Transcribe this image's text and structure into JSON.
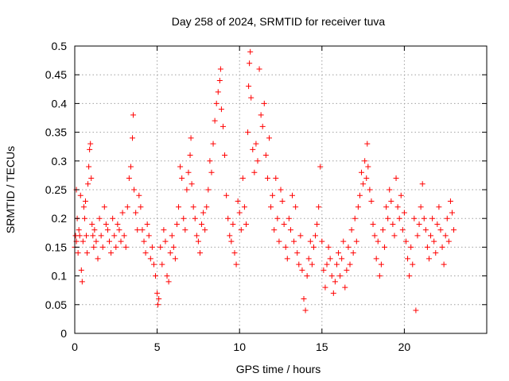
{
  "chart_data": {
    "type": "scatter",
    "title": "Day 258 of 2024, SRMTID for receiver tuva",
    "xlabel": "GPS time / hours",
    "ylabel": "SRMTID / TECUs",
    "xlim": [
      0,
      25
    ],
    "ylim": [
      0,
      0.5
    ],
    "xticks": [
      0,
      5,
      10,
      15,
      20
    ],
    "yticks": [
      0,
      0.05,
      0.1,
      0.15,
      0.2,
      0.25,
      0.3,
      0.35,
      0.4,
      0.45,
      0.5
    ],
    "xtick_labels": [
      "0",
      "5",
      "10",
      "15",
      "20"
    ],
    "ytick_labels": [
      "0",
      "0.05",
      "0.1",
      "0.15",
      "0.2",
      "0.25",
      "0.3",
      "0.35",
      "0.4",
      "0.45",
      "0.5"
    ],
    "grid": true,
    "marker": "plus",
    "color": "#ff0000",
    "series": [
      {
        "points": [
          [
            0.0,
            0.15
          ],
          [
            0.05,
            0.17
          ],
          [
            0.1,
            0.25
          ],
          [
            0.1,
            0.16
          ],
          [
            0.15,
            0.2
          ],
          [
            0.2,
            0.14
          ],
          [
            0.25,
            0.18
          ],
          [
            0.3,
            0.17
          ],
          [
            0.35,
            0.24
          ],
          [
            0.4,
            0.11
          ],
          [
            0.45,
            0.09
          ],
          [
            0.5,
            0.16
          ],
          [
            0.55,
            0.22
          ],
          [
            0.6,
            0.2
          ],
          [
            0.65,
            0.23
          ],
          [
            0.7,
            0.17
          ],
          [
            0.75,
            0.14
          ],
          [
            0.8,
            0.26
          ],
          [
            0.85,
            0.29
          ],
          [
            0.9,
            0.32
          ],
          [
            0.95,
            0.33
          ],
          [
            1.0,
            0.27
          ],
          [
            1.05,
            0.19
          ],
          [
            1.1,
            0.17
          ],
          [
            1.15,
            0.15
          ],
          [
            1.2,
            0.18
          ],
          [
            1.3,
            0.16
          ],
          [
            1.4,
            0.13
          ],
          [
            1.5,
            0.2
          ],
          [
            1.6,
            0.17
          ],
          [
            1.7,
            0.15
          ],
          [
            1.8,
            0.22
          ],
          [
            1.9,
            0.19
          ],
          [
            2.0,
            0.18
          ],
          [
            2.1,
            0.16
          ],
          [
            2.2,
            0.14
          ],
          [
            2.3,
            0.2
          ],
          [
            2.4,
            0.17
          ],
          [
            2.5,
            0.15
          ],
          [
            2.6,
            0.19
          ],
          [
            2.7,
            0.18
          ],
          [
            2.8,
            0.16
          ],
          [
            2.9,
            0.21
          ],
          [
            3.0,
            0.17
          ],
          [
            3.1,
            0.15
          ],
          [
            3.2,
            0.22
          ],
          [
            3.3,
            0.27
          ],
          [
            3.4,
            0.29
          ],
          [
            3.5,
            0.34
          ],
          [
            3.55,
            0.38
          ],
          [
            3.6,
            0.25
          ],
          [
            3.7,
            0.21
          ],
          [
            3.8,
            0.18
          ],
          [
            3.9,
            0.24
          ],
          [
            4.0,
            0.22
          ],
          [
            4.1,
            0.18
          ],
          [
            4.2,
            0.16
          ],
          [
            4.3,
            0.14
          ],
          [
            4.4,
            0.19
          ],
          [
            4.5,
            0.17
          ],
          [
            4.6,
            0.13
          ],
          [
            4.7,
            0.15
          ],
          [
            4.8,
            0.12
          ],
          [
            4.9,
            0.1
          ],
          [
            5.0,
            0.07
          ],
          [
            5.05,
            0.05
          ],
          [
            5.1,
            0.06
          ],
          [
            5.2,
            0.15
          ],
          [
            5.3,
            0.12
          ],
          [
            5.4,
            0.18
          ],
          [
            5.5,
            0.16
          ],
          [
            5.6,
            0.1
          ],
          [
            5.7,
            0.09
          ],
          [
            5.8,
            0.14
          ],
          [
            5.9,
            0.17
          ],
          [
            6.0,
            0.15
          ],
          [
            6.1,
            0.13
          ],
          [
            6.2,
            0.19
          ],
          [
            6.3,
            0.22
          ],
          [
            6.4,
            0.29
          ],
          [
            6.5,
            0.27
          ],
          [
            6.6,
            0.2
          ],
          [
            6.7,
            0.18
          ],
          [
            6.8,
            0.25
          ],
          [
            6.9,
            0.28
          ],
          [
            7.0,
            0.31
          ],
          [
            7.05,
            0.34
          ],
          [
            7.1,
            0.26
          ],
          [
            7.2,
            0.22
          ],
          [
            7.3,
            0.2
          ],
          [
            7.4,
            0.17
          ],
          [
            7.5,
            0.16
          ],
          [
            7.6,
            0.14
          ],
          [
            7.7,
            0.19
          ],
          [
            7.8,
            0.21
          ],
          [
            7.9,
            0.18
          ],
          [
            8.0,
            0.22
          ],
          [
            8.1,
            0.25
          ],
          [
            8.2,
            0.3
          ],
          [
            8.3,
            0.28
          ],
          [
            8.4,
            0.33
          ],
          [
            8.5,
            0.37
          ],
          [
            8.6,
            0.4
          ],
          [
            8.7,
            0.42
          ],
          [
            8.8,
            0.44
          ],
          [
            8.85,
            0.46
          ],
          [
            8.9,
            0.39
          ],
          [
            9.0,
            0.36
          ],
          [
            9.1,
            0.31
          ],
          [
            9.2,
            0.24
          ],
          [
            9.3,
            0.2
          ],
          [
            9.4,
            0.17
          ],
          [
            9.5,
            0.16
          ],
          [
            9.6,
            0.19
          ],
          [
            9.7,
            0.14
          ],
          [
            9.8,
            0.12
          ],
          [
            9.9,
            0.23
          ],
          [
            10.0,
            0.21
          ],
          [
            10.1,
            0.18
          ],
          [
            10.2,
            0.27
          ],
          [
            10.3,
            0.22
          ],
          [
            10.4,
            0.19
          ],
          [
            10.5,
            0.35
          ],
          [
            10.55,
            0.43
          ],
          [
            10.6,
            0.47
          ],
          [
            10.65,
            0.49
          ],
          [
            10.7,
            0.41
          ],
          [
            10.8,
            0.32
          ],
          [
            10.9,
            0.28
          ],
          [
            11.0,
            0.33
          ],
          [
            11.1,
            0.3
          ],
          [
            11.2,
            0.46
          ],
          [
            11.3,
            0.38
          ],
          [
            11.4,
            0.36
          ],
          [
            11.5,
            0.4
          ],
          [
            11.6,
            0.31
          ],
          [
            11.7,
            0.27
          ],
          [
            11.8,
            0.34
          ],
          [
            11.9,
            0.22
          ],
          [
            12.0,
            0.24
          ],
          [
            12.1,
            0.18
          ],
          [
            12.2,
            0.27
          ],
          [
            12.3,
            0.2
          ],
          [
            12.4,
            0.16
          ],
          [
            12.5,
            0.25
          ],
          [
            12.6,
            0.23
          ],
          [
            12.7,
            0.19
          ],
          [
            12.8,
            0.15
          ],
          [
            12.9,
            0.13
          ],
          [
            13.0,
            0.2
          ],
          [
            13.1,
            0.18
          ],
          [
            13.2,
            0.24
          ],
          [
            13.3,
            0.16
          ],
          [
            13.4,
            0.22
          ],
          [
            13.5,
            0.14
          ],
          [
            13.6,
            0.12
          ],
          [
            13.7,
            0.17
          ],
          [
            13.8,
            0.11
          ],
          [
            13.9,
            0.06
          ],
          [
            14.0,
            0.04
          ],
          [
            14.1,
            0.1
          ],
          [
            14.2,
            0.13
          ],
          [
            14.3,
            0.16
          ],
          [
            14.4,
            0.12
          ],
          [
            14.5,
            0.15
          ],
          [
            14.6,
            0.17
          ],
          [
            14.7,
            0.19
          ],
          [
            14.8,
            0.22
          ],
          [
            14.9,
            0.29
          ],
          [
            15.0,
            0.16
          ],
          [
            15.1,
            0.11
          ],
          [
            15.2,
            0.08
          ],
          [
            15.3,
            0.12
          ],
          [
            15.4,
            0.15
          ],
          [
            15.5,
            0.13
          ],
          [
            15.6,
            0.1
          ],
          [
            15.7,
            0.07
          ],
          [
            15.8,
            0.09
          ],
          [
            15.9,
            0.12
          ],
          [
            16.0,
            0.14
          ],
          [
            16.1,
            0.1
          ],
          [
            16.2,
            0.13
          ],
          [
            16.3,
            0.16
          ],
          [
            16.4,
            0.08
          ],
          [
            16.5,
            0.11
          ],
          [
            16.6,
            0.15
          ],
          [
            16.7,
            0.12
          ],
          [
            16.8,
            0.18
          ],
          [
            16.9,
            0.14
          ],
          [
            17.0,
            0.2
          ],
          [
            17.1,
            0.16
          ],
          [
            17.2,
            0.22
          ],
          [
            17.3,
            0.24
          ],
          [
            17.4,
            0.28
          ],
          [
            17.5,
            0.26
          ],
          [
            17.6,
            0.3
          ],
          [
            17.7,
            0.27
          ],
          [
            17.75,
            0.33
          ],
          [
            17.8,
            0.29
          ],
          [
            17.9,
            0.25
          ],
          [
            18.0,
            0.23
          ],
          [
            18.1,
            0.19
          ],
          [
            18.2,
            0.17
          ],
          [
            18.3,
            0.13
          ],
          [
            18.4,
            0.16
          ],
          [
            18.5,
            0.1
          ],
          [
            18.6,
            0.12
          ],
          [
            18.7,
            0.18
          ],
          [
            18.8,
            0.15
          ],
          [
            18.9,
            0.22
          ],
          [
            19.0,
            0.2
          ],
          [
            19.1,
            0.25
          ],
          [
            19.2,
            0.23
          ],
          [
            19.3,
            0.19
          ],
          [
            19.4,
            0.17
          ],
          [
            19.5,
            0.27
          ],
          [
            19.6,
            0.22
          ],
          [
            19.7,
            0.2
          ],
          [
            19.8,
            0.24
          ],
          [
            19.9,
            0.18
          ],
          [
            20.0,
            0.21
          ],
          [
            20.1,
            0.16
          ],
          [
            20.2,
            0.13
          ],
          [
            20.3,
            0.1
          ],
          [
            20.4,
            0.15
          ],
          [
            20.5,
            0.12
          ],
          [
            20.6,
            0.2
          ],
          [
            20.7,
            0.04
          ],
          [
            20.8,
            0.17
          ],
          [
            20.9,
            0.19
          ],
          [
            21.0,
            0.22
          ],
          [
            21.1,
            0.26
          ],
          [
            21.2,
            0.2
          ],
          [
            21.3,
            0.18
          ],
          [
            21.4,
            0.15
          ],
          [
            21.5,
            0.13
          ],
          [
            21.6,
            0.17
          ],
          [
            21.7,
            0.2
          ],
          [
            21.8,
            0.16
          ],
          [
            21.9,
            0.14
          ],
          [
            22.0,
            0.19
          ],
          [
            22.1,
            0.22
          ],
          [
            22.2,
            0.18
          ],
          [
            22.3,
            0.15
          ],
          [
            22.4,
            0.12
          ],
          [
            22.5,
            0.17
          ],
          [
            22.6,
            0.2
          ],
          [
            22.7,
            0.16
          ],
          [
            22.8,
            0.23
          ],
          [
            22.9,
            0.21
          ],
          [
            23.0,
            0.18
          ]
        ]
      }
    ]
  }
}
